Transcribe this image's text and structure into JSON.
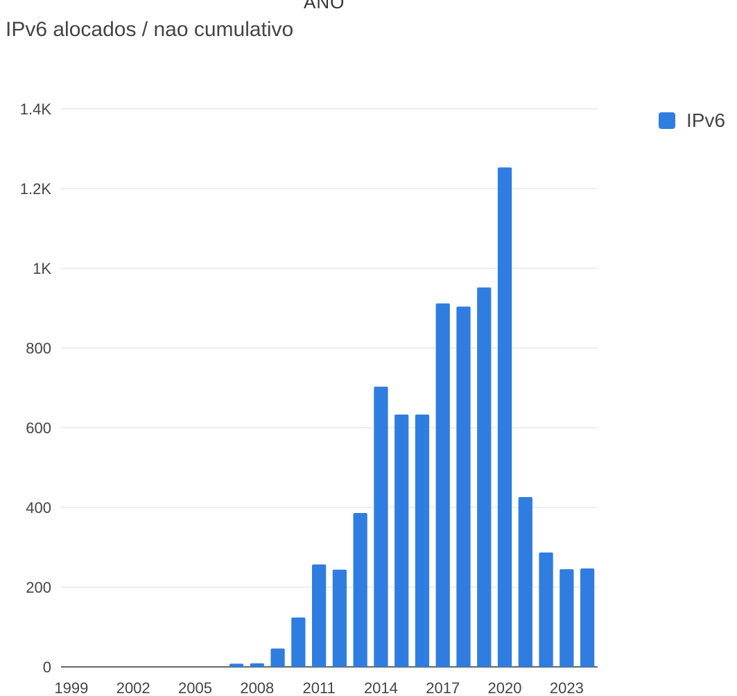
{
  "chart_data": {
    "type": "bar",
    "title": "IPv6 alocados / nao cumulativo",
    "xlabel": "ANO",
    "ylabel": "",
    "ylim": [
      0,
      1400
    ],
    "yticks": [
      0,
      200,
      400,
      600,
      800,
      1000,
      1200,
      1400
    ],
    "ytick_labels": [
      "0",
      "200",
      "400",
      "600",
      "800",
      "1K",
      "1.2K",
      "1.4K"
    ],
    "xtick_labels": [
      "1999",
      "2002",
      "2005",
      "2008",
      "2011",
      "2014",
      "2017",
      "2020",
      "2023"
    ],
    "grid": true,
    "legend_position": "top-right",
    "categories": [
      "1999",
      "2000",
      "2001",
      "2002",
      "2003",
      "2004",
      "2005",
      "2006",
      "2007",
      "2008",
      "2009",
      "2010",
      "2011",
      "2012",
      "2013",
      "2014",
      "2015",
      "2016",
      "2017",
      "2018",
      "2019",
      "2020",
      "2021",
      "2022",
      "2023",
      "2024"
    ],
    "series": [
      {
        "name": "IPv6",
        "color": "#2f7de1",
        "values": [
          0,
          0,
          0,
          0,
          0,
          0,
          0,
          0,
          8,
          9,
          46,
          124,
          257,
          244,
          386,
          703,
          633,
          633,
          912,
          904,
          952,
          1253,
          426,
          287,
          245,
          247
        ]
      }
    ]
  }
}
